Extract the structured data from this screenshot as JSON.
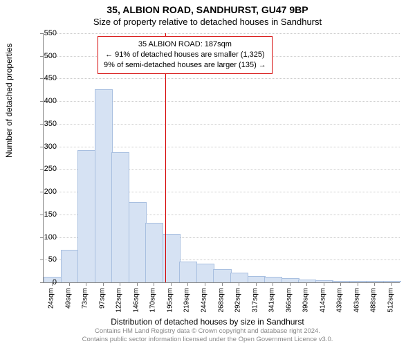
{
  "title": "35, ALBION ROAD, SANDHURST, GU47 9BP",
  "subtitle": "Size of property relative to detached houses in Sandhurst",
  "chart": {
    "type": "histogram",
    "y_label": "Number of detached properties",
    "x_label": "Distribution of detached houses by size in Sandhurst",
    "y_max": 550,
    "y_ticks": [
      0,
      50,
      100,
      150,
      200,
      250,
      300,
      350,
      400,
      450,
      500,
      550
    ],
    "x_tick_labels": [
      "24sqm",
      "49sqm",
      "73sqm",
      "97sqm",
      "122sqm",
      "146sqm",
      "170sqm",
      "195sqm",
      "219sqm",
      "244sqm",
      "268sqm",
      "292sqm",
      "317sqm",
      "341sqm",
      "366sqm",
      "390sqm",
      "414sqm",
      "439sqm",
      "463sqm",
      "488sqm",
      "512sqm"
    ],
    "bar_values": [
      10,
      70,
      290,
      425,
      285,
      175,
      130,
      105,
      45,
      40,
      28,
      20,
      12,
      10,
      8,
      4,
      3,
      2,
      2,
      1,
      1
    ],
    "bar_fill": "#d6e2f3",
    "bar_stroke": "#a8bfe0",
    "grid_color": "#cccccc",
    "axis_color": "#888888",
    "reference_line": {
      "at_sqm": 187,
      "color": "#d40000"
    },
    "annotation": {
      "lines": [
        "35 ALBION ROAD: 187sqm",
        "← 91% of detached houses are smaller (1,325)",
        "9% of semi-detached houses are larger (135) →"
      ],
      "border_color": "#d40000"
    }
  },
  "attribution": {
    "line1": "Contains HM Land Registry data © Crown copyright and database right 2024.",
    "line2": "Contains public sector information licensed under the Open Government Licence v3.0."
  }
}
